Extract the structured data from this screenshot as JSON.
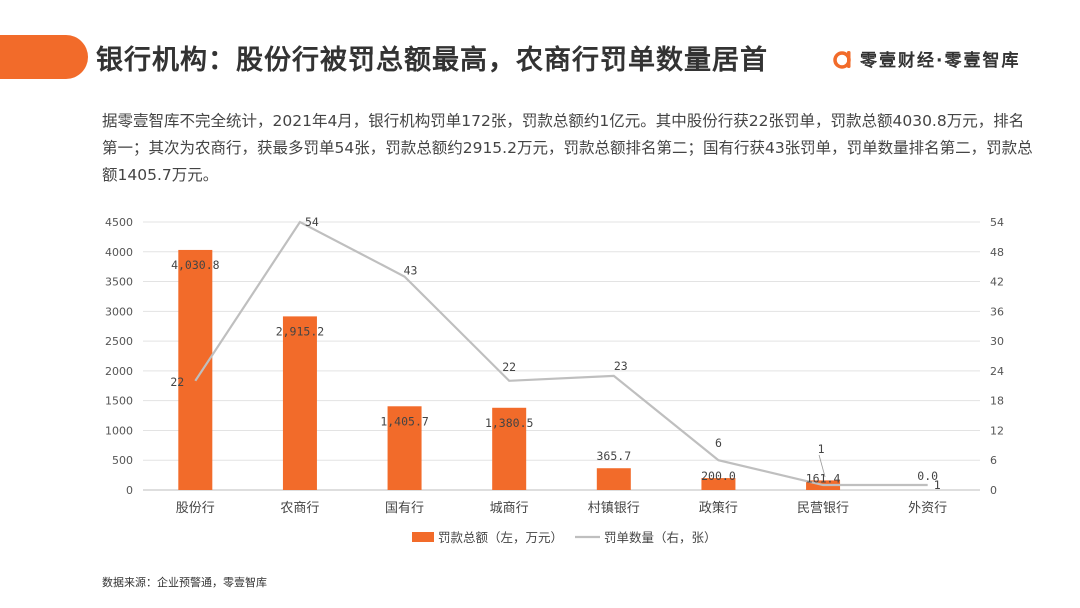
{
  "header": {
    "title": "银行机构：股份行被罚总额最高，农商行罚单数量居首",
    "brand": "零壹财经·零壹智库"
  },
  "description": "据零壹智库不完全统计，2021年4月，银行机构罚单172张，罚款总额约1亿元。其中股份行获22张罚单，罚款总额4030.8万元，排名第一；其次为农商行，获最多罚单54张，罚款总额约2915.2万元，罚款总额排名第二；国有行获43张罚单，罚单数量排名第二，罚款总额1405.7万元。",
  "source": "数据来源：企业预警通，零壹智库",
  "colors": {
    "accent": "#f26b2a",
    "bar": "#f26b2a",
    "line": "#bfbfbf",
    "grid": "#e3e3e3"
  },
  "chart_data": {
    "type": "bar",
    "categories": [
      "股份行",
      "农商行",
      "国有行",
      "城商行",
      "村镇银行",
      "政策行",
      "民营银行",
      "外资行"
    ],
    "series": [
      {
        "name": "罚款总额（左，万元）",
        "type": "bar",
        "axis": "left",
        "values": [
          4030.8,
          2915.2,
          1405.7,
          1380.5,
          365.7,
          200.0,
          161.4,
          0.0
        ],
        "labels": [
          "4,030.8",
          "2,915.2",
          "1,405.7",
          "1,380.5",
          "365.7",
          "200.0",
          "161.4",
          "0.0"
        ]
      },
      {
        "name": "罚单数量（右，张）",
        "type": "line",
        "axis": "right",
        "values": [
          22,
          54,
          43,
          22,
          23,
          6,
          1,
          1
        ],
        "labels": [
          "22",
          "54",
          "43",
          "22",
          "23",
          "6",
          "1",
          "1"
        ]
      }
    ],
    "y_left": {
      "min": 0,
      "max": 4500,
      "ticks": [
        "0",
        "500",
        "1000",
        "1500",
        "2000",
        "2500",
        "3000",
        "3500",
        "4000",
        "4500"
      ]
    },
    "y_right": {
      "min": 0,
      "max": 54,
      "ticks": [
        "0",
        "6",
        "12",
        "18",
        "24",
        "30",
        "36",
        "42",
        "48",
        "54"
      ]
    },
    "grid": true,
    "legend": "bottom"
  }
}
